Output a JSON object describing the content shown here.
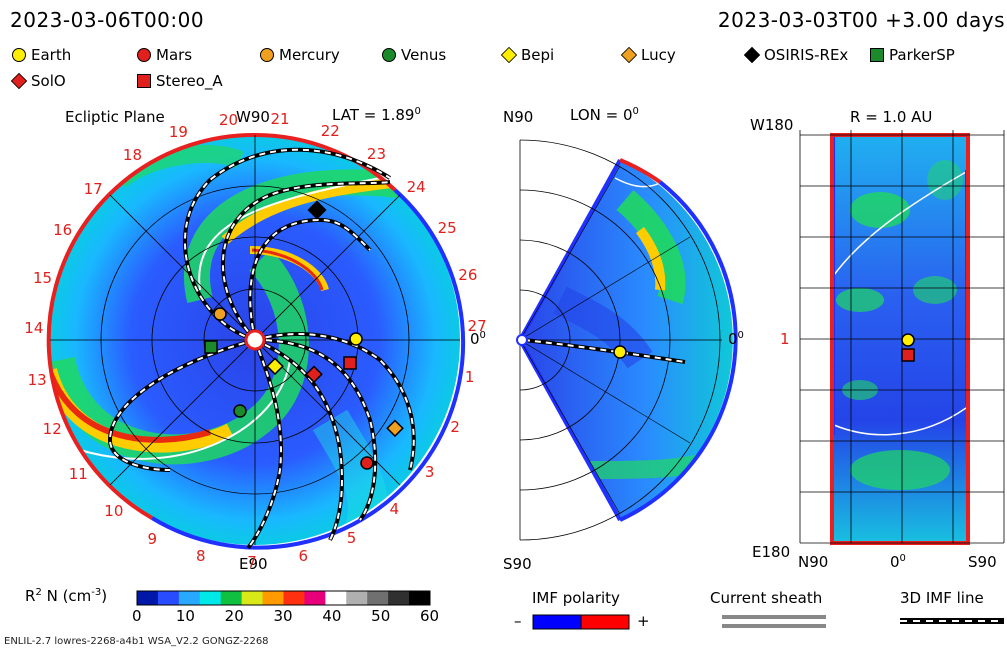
{
  "header": {
    "date_left": "2023-03-06T00:00",
    "date_right": "2023-03-03T00 +3.00 days"
  },
  "legend": [
    {
      "label": "Earth",
      "shape": "circle",
      "color": "#ffee00"
    },
    {
      "label": "Mars",
      "shape": "circle",
      "color": "#e0201c"
    },
    {
      "label": "Mercury",
      "shape": "circle",
      "color": "#f0a020"
    },
    {
      "label": "Venus",
      "shape": "circle",
      "color": "#1a8a2a"
    },
    {
      "label": "Bepi",
      "shape": "diamond",
      "color": "#ffee00"
    },
    {
      "label": "Lucy",
      "shape": "diamond",
      "color": "#f0a020"
    },
    {
      "label": "OSIRIS-REx",
      "shape": "diamond",
      "color": "#000000"
    },
    {
      "label": "ParkerSP",
      "shape": "square",
      "color": "#1a8a2a"
    },
    {
      "label": "SolO",
      "shape": "diamond",
      "color": "#e0201c"
    },
    {
      "label": "Stereo_A",
      "shape": "square",
      "color": "#e0201c"
    }
  ],
  "ecliptic": {
    "title": "Ecliptic Plane",
    "lat": "LAT = 1.89",
    "lat_sup": "0",
    "top": "W90",
    "bottom": "E90",
    "right": "0",
    "right_sup": "0",
    "rotations": [
      "20",
      "21",
      "22",
      "23",
      "24",
      "25",
      "26",
      "27",
      "1",
      "2",
      "3",
      "4",
      "5",
      "6",
      "7",
      "8",
      "9",
      "10",
      "11",
      "12",
      "13",
      "14",
      "15",
      "16",
      "17",
      "18",
      "19"
    ]
  },
  "meridional": {
    "top_left": "N90",
    "lon": "LON = 0",
    "lon_sup": "0",
    "right": "0",
    "right_sup": "0",
    "bottom": "S90"
  },
  "map": {
    "radius": "R = 1.0 AU",
    "top": "W180",
    "bottom": "E180",
    "mid": "1",
    "x_left": "N90",
    "x_mid": "0",
    "x_mid_sup": "0",
    "x_right": "S90"
  },
  "colorbar": {
    "label": "R",
    "label_sup": "2",
    "label_rest": " N (cm",
    "label_exp": "-3",
    "label_end": ")",
    "ticks": [
      "0",
      "10",
      "20",
      "30",
      "40",
      "50",
      "60"
    ],
    "colors": [
      "#0018a8",
      "#2a4cff",
      "#29a8ff",
      "#00e8e8",
      "#10c040",
      "#d8e818",
      "#ff9a00",
      "#ff3010",
      "#e8007a",
      "#ffffff",
      "#b0b0b0",
      "#707070",
      "#303030",
      "#000000"
    ]
  },
  "imf": {
    "title": "IMF polarity",
    "minus": "–",
    "plus": "+",
    "neg_color": "#0000ff",
    "pos_color": "#ff0000"
  },
  "sheath": {
    "title": "Current sheath"
  },
  "imfline": {
    "title": "3D IMF line"
  },
  "footer": {
    "model": "ENLIL-2.7 lowres-2268-a4b1 WSA_V2.2 GONGZ-2268"
  }
}
